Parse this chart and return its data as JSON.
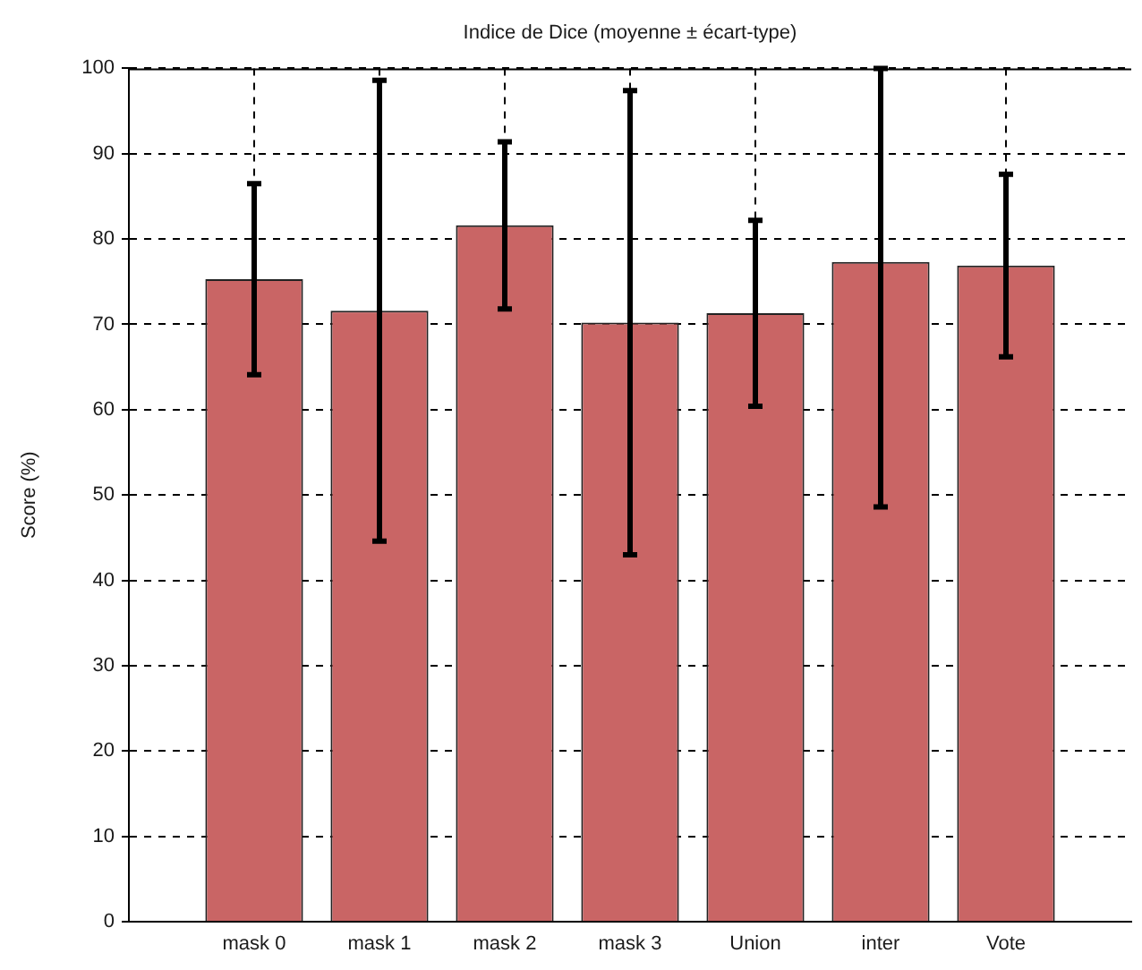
{
  "chart_data": {
    "type": "bar",
    "title": "Indice de Dice (moyenne ± écart-type)",
    "ylabel": "Score (%)",
    "categories": [
      "mask 0",
      "mask 1",
      "mask 2",
      "mask 3",
      "Union",
      "inter",
      "Vote"
    ],
    "values": [
      75.3,
      71.6,
      81.6,
      70.2,
      71.3,
      77.3,
      76.9
    ],
    "errors": [
      11.2,
      27,
      9.8,
      27.2,
      10.9,
      [
        48.6,
        100
      ],
      10.7
    ],
    "color": "#c96565",
    "ylim": [
      0,
      100
    ],
    "yticks": [
      0,
      10,
      20,
      30,
      40,
      50,
      60,
      70,
      80,
      90,
      100
    ],
    "grid": true
  }
}
